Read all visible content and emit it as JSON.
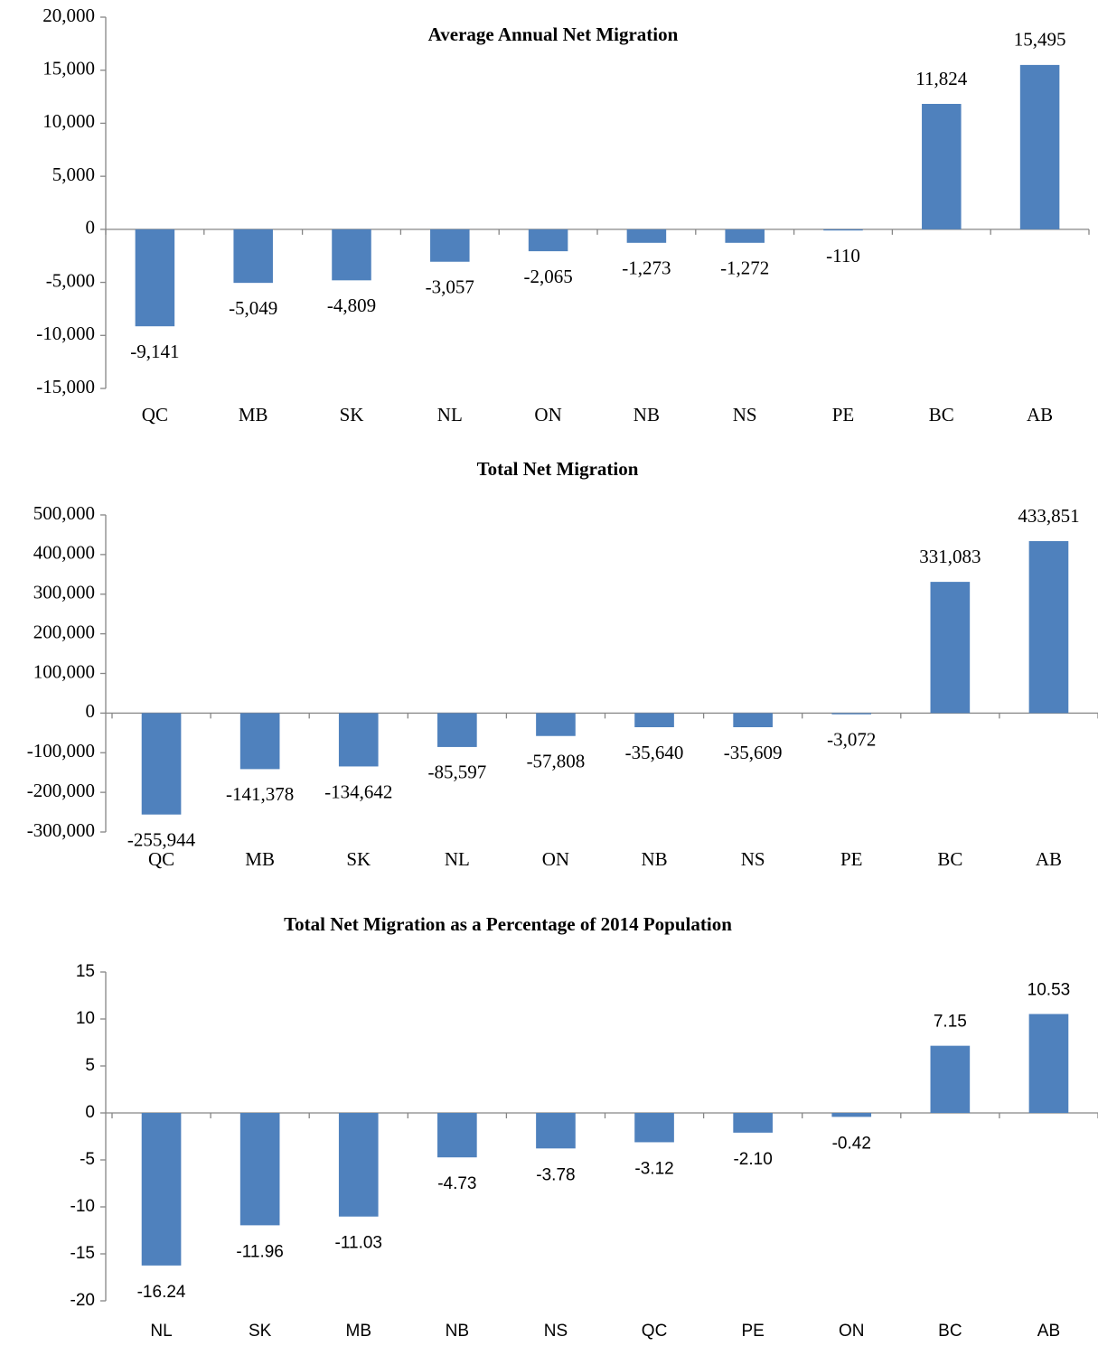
{
  "chart_data": [
    {
      "type": "bar",
      "title": "Average Annual Net Migration",
      "categories": [
        "QC",
        "MB",
        "SK",
        "NL",
        "ON",
        "NB",
        "NS",
        "PE",
        "BC",
        "AB"
      ],
      "values": [
        -9141,
        -5049,
        -4809,
        -3057,
        -2065,
        -1273,
        -1272,
        -110,
        11824,
        15495
      ],
      "value_labels": [
        "-9,141",
        "-5,049",
        "-4,809",
        "-3,057",
        "-2,065",
        "-1,273",
        "-1,272",
        "-110",
        "11,824",
        "15,495"
      ],
      "color": "#4f81bd",
      "ylim": [
        -15000,
        20000
      ],
      "yticks": [
        {
          "value": -15000,
          "label": "-15,000"
        },
        {
          "value": -10000,
          "label": "-10,000"
        },
        {
          "value": -5000,
          "label": "-5,000"
        },
        0,
        {
          "value": 5000,
          "label": "5,000"
        },
        {
          "value": 10000,
          "label": "10,000"
        },
        {
          "value": 15000,
          "label": "15,000"
        },
        {
          "value": 20000,
          "label": "20,000"
        }
      ]
    },
    {
      "type": "bar",
      "title": "Total Net Migration",
      "categories": [
        "QC",
        "MB",
        "SK",
        "NL",
        "ON",
        "NB",
        "NS",
        "PE",
        "BC",
        "AB"
      ],
      "values": [
        -255944,
        -141378,
        -134642,
        -85597,
        -57808,
        -35640,
        -35609,
        -3072,
        331083,
        433851
      ],
      "value_labels": [
        "-255,944",
        "-141,378",
        "-134,642",
        "-85,597",
        "-57,808",
        "-35,640",
        "-35,609",
        "-3,072",
        "331,083",
        "433,851"
      ],
      "color": "#4f81bd",
      "ylim": [
        -300000,
        500000
      ],
      "yticks": [
        {
          "value": -300000,
          "label": "-300,000"
        },
        {
          "value": -200000,
          "label": "-200,000"
        },
        {
          "value": -100000,
          "label": "-100,000"
        },
        0,
        {
          "value": 100000,
          "label": "100,000"
        },
        {
          "value": 200000,
          "label": "200,000"
        },
        {
          "value": 300000,
          "label": "300,000"
        },
        {
          "value": 400000,
          "label": "400,000"
        },
        {
          "value": 500000,
          "label": "500,000"
        }
      ]
    },
    {
      "type": "bar",
      "title": "Total Net Migration as a Percentage of 2014 Population",
      "categories": [
        "NL",
        "SK",
        "MB",
        "NB",
        "NS",
        "QC",
        "PE",
        "ON",
        "BC",
        "AB"
      ],
      "values": [
        -16.24,
        -11.96,
        -11.03,
        -4.73,
        -3.78,
        -3.12,
        -2.1,
        -0.42,
        7.15,
        10.53
      ],
      "value_labels": [
        "-16.24",
        "-11.96",
        "-11.03",
        "-4.73",
        "-3.78",
        "-3.12",
        "-2.10",
        "-0.42",
        "7.15",
        "10.53"
      ],
      "color": "#4f81bd",
      "ylim": [
        -20,
        15
      ],
      "yticks": [
        -20,
        -15,
        -10,
        -5,
        0,
        5,
        10,
        15
      ]
    }
  ]
}
